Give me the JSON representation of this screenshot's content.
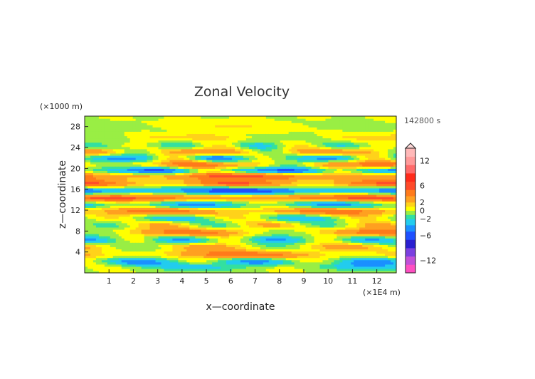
{
  "chart_data": {
    "type": "heatmap",
    "title": "Zonal Velocity",
    "xlabel": "x—coordinate",
    "ylabel": "z—coordinate",
    "x_unit_label": "(×1E4 m)",
    "y_unit_label": "(×1000 m)",
    "time_label": "142800 s",
    "xlim": [
      0,
      12.8
    ],
    "ylim": [
      0,
      30
    ],
    "x_ticks": [
      1,
      2,
      3,
      4,
      5,
      6,
      7,
      8,
      9,
      10,
      11,
      12
    ],
    "y_ticks": [
      4,
      8,
      12,
      16,
      20,
      24,
      28
    ],
    "colorbar": {
      "tick_labels": [
        "12",
        "6",
        "2",
        "0",
        "−2",
        "−6",
        "−12"
      ],
      "tick_values": [
        12,
        6,
        2,
        0,
        -2,
        -6,
        -12
      ],
      "range": [
        -15,
        15
      ],
      "levels": [
        {
          "max": -13,
          "color": "#ff4fc2"
        },
        {
          "max": -11,
          "color": "#c24fd8"
        },
        {
          "max": -9,
          "color": "#7a3fe0"
        },
        {
          "max": -7,
          "color": "#2a1fd0"
        },
        {
          "max": -5,
          "color": "#1e50ff"
        },
        {
          "max": -3.5,
          "color": "#1a90ff"
        },
        {
          "max": -2,
          "color": "#22ccee"
        },
        {
          "max": -1,
          "color": "#33e0a0"
        },
        {
          "max": 0,
          "color": "#99ee44"
        },
        {
          "max": 1,
          "color": "#ffff00"
        },
        {
          "max": 2,
          "color": "#ffd21a"
        },
        {
          "max": 3.5,
          "color": "#ffa020"
        },
        {
          "max": 5,
          "color": "#ff7a1a"
        },
        {
          "max": 7,
          "color": "#ff4a2a"
        },
        {
          "max": 9,
          "color": "#ff2a1a"
        },
        {
          "max": 11,
          "color": "#ff6a6a"
        },
        {
          "max": 13,
          "color": "#ff9a9a"
        },
        {
          "max": 15,
          "color": "#ffb8b8"
        }
      ]
    },
    "bands": [
      {
        "z": 1.2,
        "base": -1.2,
        "amp": 1.6,
        "k": 0.9,
        "phase": 0.3
      },
      {
        "z": 2.2,
        "base": -2.0,
        "amp": 2.5,
        "k": 1.3,
        "phase": 1.1
      },
      {
        "z": 3.6,
        "base": 2.5,
        "amp": 2.2,
        "k": 0.7,
        "phase": 2.0
      },
      {
        "z": 5.0,
        "base": 1.0,
        "amp": 2.0,
        "k": 1.1,
        "phase": 0.6
      },
      {
        "z": 6.4,
        "base": -1.8,
        "amp": 2.2,
        "k": 1.6,
        "phase": 2.4
      },
      {
        "z": 7.8,
        "base": 2.0,
        "amp": 2.5,
        "k": 0.8,
        "phase": 1.7
      },
      {
        "z": 9.2,
        "base": 0.5,
        "amp": 2.0,
        "k": 1.4,
        "phase": 0.2
      },
      {
        "z": 10.6,
        "base": -1.2,
        "amp": 2.2,
        "k": 1.2,
        "phase": 2.9
      },
      {
        "z": 11.8,
        "base": 3.0,
        "amp": 1.8,
        "k": 0.9,
        "phase": 0.9
      },
      {
        "z": 13.2,
        "base": -2.5,
        "amp": 2.0,
        "k": 1.1,
        "phase": 1.4
      },
      {
        "z": 14.4,
        "base": 4.0,
        "amp": 1.5,
        "k": 0.6,
        "phase": 2.2
      },
      {
        "z": 15.8,
        "base": -4.5,
        "amp": 2.0,
        "k": 0.8,
        "phase": 0.4
      },
      {
        "z": 17.2,
        "base": 3.2,
        "amp": 2.2,
        "k": 1.0,
        "phase": 1.9
      },
      {
        "z": 18.6,
        "base": 4.0,
        "amp": 1.6,
        "k": 0.7,
        "phase": 3.0
      },
      {
        "z": 19.6,
        "base": -3.5,
        "amp": 2.5,
        "k": 1.2,
        "phase": 0.8
      },
      {
        "z": 20.8,
        "base": 2.5,
        "amp": 2.4,
        "k": 0.9,
        "phase": 2.6
      },
      {
        "z": 22.0,
        "base": -2.2,
        "amp": 2.6,
        "k": 1.5,
        "phase": 1.2
      },
      {
        "z": 23.2,
        "base": 2.0,
        "amp": 2.0,
        "k": 1.2,
        "phase": 0.1
      },
      {
        "z": 24.4,
        "base": -0.8,
        "amp": 1.5,
        "k": 1.8,
        "phase": 2.1
      },
      {
        "z": 26.0,
        "base": 0.6,
        "amp": 1.0,
        "k": 0.8,
        "phase": 1.5
      },
      {
        "z": 28.0,
        "base": 0.3,
        "amp": 0.8,
        "k": 0.6,
        "phase": 0.7
      }
    ]
  }
}
